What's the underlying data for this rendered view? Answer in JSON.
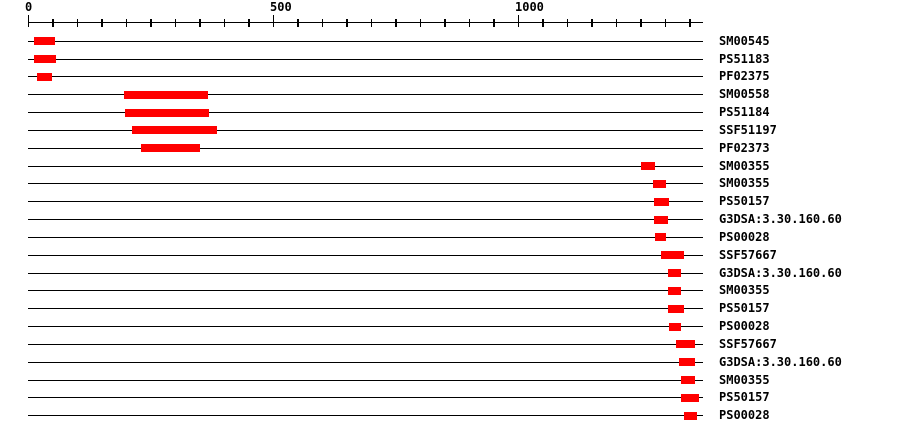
{
  "chart_data": {
    "type": "bar",
    "subtype": "protein-domain-track-plot",
    "title": "",
    "xlabel": "",
    "ylabel": "",
    "axis": {
      "min": 0,
      "max": 1378,
      "minor_tick_interval": 50,
      "major_ticks": [
        {
          "value": 0,
          "label": "0"
        },
        {
          "value": 500,
          "label": "500"
        },
        {
          "value": 1000,
          "label": "1000"
        }
      ]
    },
    "colors": {
      "bar": "#ff0000",
      "line": "#000000",
      "text": "#000000",
      "background": "#ffffff"
    },
    "rows": [
      {
        "label": "SM00545",
        "start": 14,
        "end": 56
      },
      {
        "label": "PS51183",
        "start": 14,
        "end": 59
      },
      {
        "label": "PF02375",
        "start": 19,
        "end": 51
      },
      {
        "label": "SM00558",
        "start": 196,
        "end": 369
      },
      {
        "label": "PS51184",
        "start": 199,
        "end": 370
      },
      {
        "label": "SSF51197",
        "start": 213,
        "end": 387
      },
      {
        "label": "PF02373",
        "start": 231,
        "end": 352
      },
      {
        "label": "SM00355",
        "start": 1253,
        "end": 1280
      },
      {
        "label": "SM00355",
        "start": 1277,
        "end": 1303
      },
      {
        "label": "PS50157",
        "start": 1279,
        "end": 1310
      },
      {
        "label": "G3DSA:3.30.160.60",
        "start": 1279,
        "end": 1307
      },
      {
        "label": "PS00028",
        "start": 1281,
        "end": 1303
      },
      {
        "label": "SSF57667",
        "start": 1292,
        "end": 1339
      },
      {
        "label": "G3DSA:3.30.160.60",
        "start": 1307,
        "end": 1333
      },
      {
        "label": "SM00355",
        "start": 1308,
        "end": 1333
      },
      {
        "label": "PS50157",
        "start": 1308,
        "end": 1339
      },
      {
        "label": "PS00028",
        "start": 1310,
        "end": 1333
      },
      {
        "label": "SSF57667",
        "start": 1323,
        "end": 1363
      },
      {
        "label": "G3DSA:3.30.160.60",
        "start": 1329,
        "end": 1363
      },
      {
        "label": "SM00355",
        "start": 1334,
        "end": 1363
      },
      {
        "label": "PS50157",
        "start": 1334,
        "end": 1371
      },
      {
        "label": "PS00028",
        "start": 1339,
        "end": 1367
      }
    ]
  }
}
